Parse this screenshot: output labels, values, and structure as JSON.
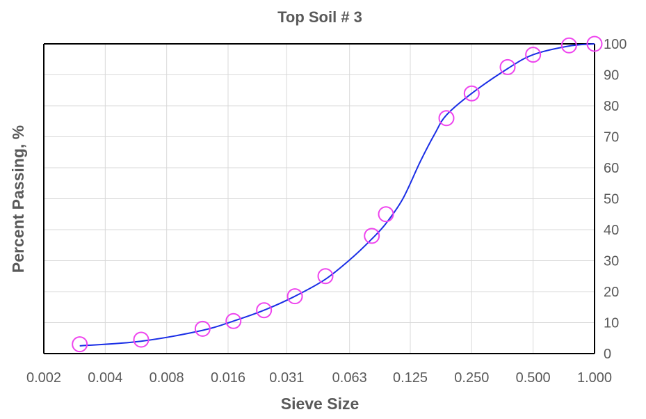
{
  "chart_data": {
    "type": "scatter",
    "title": "Top Soil # 3",
    "xlabel": "Sieve Size",
    "ylabel": "Percent  Passing, %",
    "x_scale": "log2",
    "xlim": [
      0.002,
      1.0
    ],
    "ylim": [
      0,
      100
    ],
    "x_tick_values": [
      0.002,
      0.004,
      0.008,
      0.016,
      0.031,
      0.063,
      0.125,
      0.25,
      0.5,
      1.0
    ],
    "x_tick_labels": [
      "0.002",
      "0.004",
      "0.008",
      "0.016",
      "0.031",
      "0.063",
      "0.125",
      "0.250",
      "0.500",
      "1.000"
    ],
    "y_ticks": [
      0,
      10,
      20,
      30,
      40,
      50,
      60,
      70,
      80,
      90,
      100
    ],
    "y_axis_side": "right",
    "grid": true,
    "series": [
      {
        "role": "markers",
        "marker": "open-circle",
        "color": "#ee44ee",
        "x": [
          0.003,
          0.006,
          0.012,
          0.017,
          0.024,
          0.034,
          0.048,
          0.081,
          0.095,
          0.188,
          0.25,
          0.375,
          0.5,
          0.75,
          1.0
        ],
        "y": [
          3,
          4.5,
          8,
          10.5,
          14,
          18.5,
          25,
          38,
          45,
          76,
          84,
          92.5,
          96.5,
          99.5,
          100
        ]
      },
      {
        "role": "fitted-curve",
        "color": "#1a2ee6",
        "x": [
          0.003,
          0.006,
          0.012,
          0.017,
          0.024,
          0.034,
          0.048,
          0.065,
          0.081,
          0.095,
          0.115,
          0.14,
          0.165,
          0.188,
          0.25,
          0.375,
          0.5,
          0.75,
          1.0
        ],
        "y": [
          2.5,
          4,
          7.5,
          10.5,
          14,
          18.5,
          24,
          31,
          37,
          42,
          50,
          62,
          71,
          77,
          84,
          92,
          96.5,
          99.3,
          100
        ]
      }
    ]
  }
}
